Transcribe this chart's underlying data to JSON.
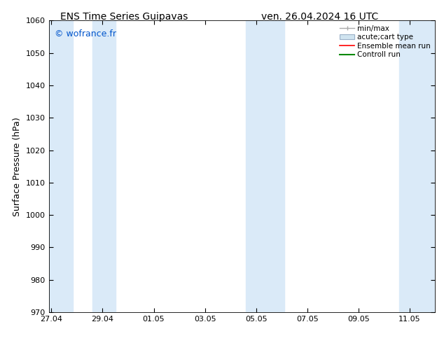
{
  "title_left": "ENS Time Series Guipavas",
  "title_right": "ven. 26.04.2024 16 UTC",
  "ylabel": "Surface Pressure (hPa)",
  "ylim": [
    970,
    1060
  ],
  "yticks": [
    970,
    980,
    990,
    1000,
    1010,
    1020,
    1030,
    1040,
    1050,
    1060
  ],
  "xtick_labels": [
    "27.04",
    "29.04",
    "01.05",
    "03.05",
    "05.05",
    "07.05",
    "09.05",
    "11.05"
  ],
  "xtick_positions": [
    0,
    2,
    4,
    6,
    8,
    10,
    12,
    14
  ],
  "xlim": [
    -0.1,
    15.0
  ],
  "watermark": "© wofrance.fr",
  "watermark_color": "#0055cc",
  "background_color": "#ffffff",
  "shaded_color": "#daeaf8",
  "shaded_regions": [
    {
      "xmin": -0.1,
      "xmax": 0.85
    },
    {
      "xmin": 1.6,
      "xmax": 2.5
    },
    {
      "xmin": 7.6,
      "xmax": 9.1
    },
    {
      "xmin": 13.6,
      "xmax": 15.0
    }
  ],
  "title_fontsize": 10,
  "tick_fontsize": 8,
  "ylabel_fontsize": 9,
  "watermark_fontsize": 9,
  "legend_fontsize": 7.5
}
